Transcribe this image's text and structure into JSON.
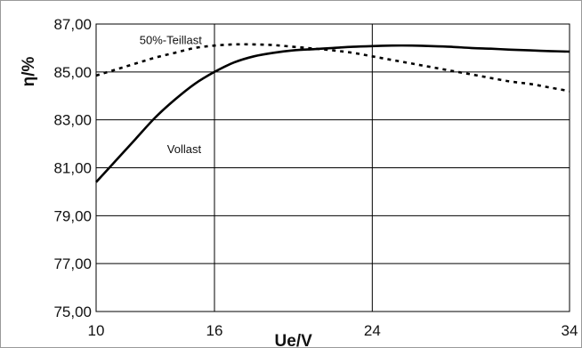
{
  "chart_data": {
    "type": "line",
    "title": "",
    "xlabel": "Ue/V",
    "ylabel": "η/%",
    "xlim": [
      10,
      34
    ],
    "ylim": [
      75,
      87
    ],
    "x_ticks": [
      10,
      16,
      24,
      34
    ],
    "x_tick_labels": [
      "10",
      "16",
      "24",
      "34"
    ],
    "y_ticks": [
      75,
      77,
      79,
      81,
      83,
      85,
      87
    ],
    "y_tick_labels": [
      "75,00",
      "77,00",
      "79,00",
      "81,00",
      "83,00",
      "85,00",
      "87,00"
    ],
    "grid": true,
    "legend": "none",
    "series": [
      {
        "name": "Vollast",
        "style": "solid",
        "color": "#000000",
        "x": [
          10,
          11,
          12,
          13,
          14,
          15,
          16,
          17,
          18,
          19,
          20,
          21,
          22,
          23,
          24,
          25,
          26,
          27,
          28,
          29,
          30,
          31,
          32,
          33,
          34
        ],
        "y": [
          80.4,
          81.3,
          82.2,
          83.1,
          83.85,
          84.5,
          85.0,
          85.4,
          85.65,
          85.8,
          85.9,
          85.95,
          86.0,
          86.05,
          86.08,
          86.1,
          86.1,
          86.08,
          86.05,
          86.0,
          85.97,
          85.93,
          85.9,
          85.87,
          85.85
        ]
      },
      {
        "name": "50%-Teillast",
        "style": "dotted",
        "color": "#000000",
        "x": [
          10,
          11,
          12,
          13,
          14,
          15,
          16,
          17,
          18,
          19,
          20,
          21,
          22,
          23,
          24,
          25,
          26,
          27,
          28,
          29,
          30,
          31,
          32,
          33,
          34
        ],
        "y": [
          84.85,
          85.1,
          85.35,
          85.6,
          85.8,
          86.0,
          86.1,
          86.15,
          86.15,
          86.12,
          86.05,
          85.98,
          85.9,
          85.8,
          85.65,
          85.5,
          85.35,
          85.2,
          85.05,
          84.9,
          84.75,
          84.6,
          84.5,
          84.35,
          84.2
        ]
      }
    ],
    "annotations": [
      {
        "text": "50%-Teillast",
        "x": 12.2,
        "y": 86.35
      },
      {
        "text": "Vollast",
        "x": 13.6,
        "y": 81.8
      }
    ]
  }
}
